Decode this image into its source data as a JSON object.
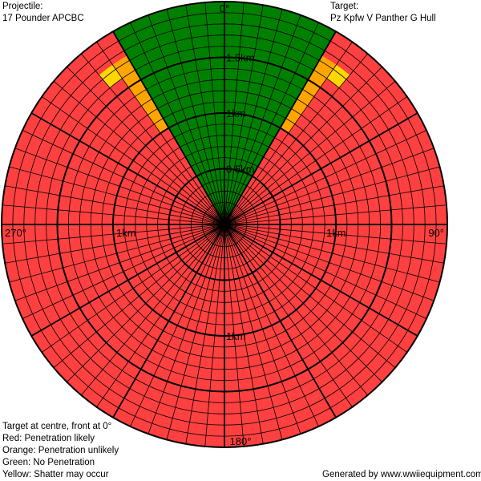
{
  "header": {
    "projectile_label": "Projectile:",
    "projectile_value": "17 Pounder APCBC",
    "target_label": "Target:",
    "target_value": "Pz Kpfw V Panther G Hull"
  },
  "legend": {
    "line1": "Target at centre, front at 0°",
    "line2": "Red: Penetration likely",
    "line3": "Orange: Penetration unlikely",
    "line4": "Green: No Penetration",
    "line5": "Yellow: Shatter may occur"
  },
  "footer": {
    "generated": "Generated by www.wwiiequipment.com"
  },
  "chart_data": {
    "type": "polar",
    "max_range_km": 2.0,
    "ring_step_km": 0.1,
    "major_ring_step_km": 0.5,
    "spoke_step_deg": 5,
    "major_spoke_step_deg": 30,
    "angle_labels": [
      {
        "angle": 0,
        "text": "0°"
      },
      {
        "angle": 90,
        "text": "90°"
      },
      {
        "angle": 180,
        "text": "180°"
      },
      {
        "angle": 270,
        "text": "270°"
      }
    ],
    "range_labels": [
      {
        "angle": 0,
        "km": 0.5,
        "text": "0.5km"
      },
      {
        "angle": 0,
        "km": 1.0,
        "text": "1km"
      },
      {
        "angle": 0,
        "km": 1.5,
        "text": "1.5km"
      },
      {
        "angle": 90,
        "km": 1.0,
        "text": "1km"
      },
      {
        "angle": 180,
        "km": 1.0,
        "text": "1km"
      },
      {
        "angle": 270,
        "km": 1.0,
        "text": "1km"
      }
    ],
    "colors": {
      "penetration_likely": "#ff4040",
      "penetration_unlikely": "#ffa500",
      "no_penetration": "#008000",
      "shatter": "#ffd700",
      "grid": "#000000"
    },
    "zones": [
      {
        "result": "no_penetration",
        "angle_from": -30,
        "angle_to": 30,
        "km_from": 0,
        "km_to": 2.0
      },
      {
        "result": "penetration_unlikely",
        "angle_from": 30,
        "angle_to": 35,
        "km_from": 1.0,
        "km_to": 1.75
      },
      {
        "result": "penetration_unlikely",
        "angle_from": -35,
        "angle_to": -30,
        "km_from": 1.0,
        "km_to": 1.75
      },
      {
        "result": "shatter",
        "angle_from": 35,
        "angle_to": 40,
        "km_from": 1.6,
        "km_to": 1.75
      },
      {
        "result": "shatter",
        "angle_from": -40,
        "angle_to": -35,
        "km_from": 1.6,
        "km_to": 1.75
      }
    ]
  }
}
